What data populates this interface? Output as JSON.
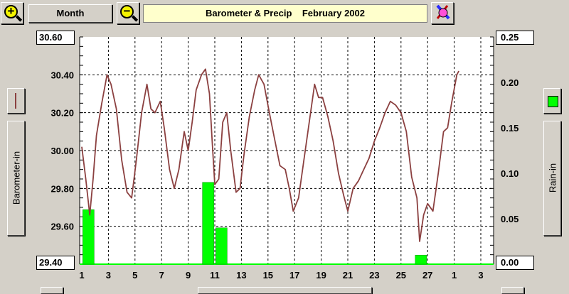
{
  "toolbar": {
    "zoom_in_glyph": "+",
    "period_label": "Month",
    "zoom_out_glyph": "−",
    "chart_title": "Barometer & Precip    February 2002"
  },
  "left_panel": {
    "axis_button_label": "Barometer-in",
    "series_color": "#8b4040"
  },
  "right_panel": {
    "axis_button_label": "Rain-in",
    "series_color": "#00ff00"
  },
  "left_axis": {
    "top_label": "30.60",
    "bottom_label": "29.40",
    "ticks": [
      "30.40",
      "30.20",
      "30.00",
      "29.80",
      "29.60"
    ]
  },
  "right_axis": {
    "top_label": "0.25",
    "bottom_label": "0.00",
    "ticks": [
      "0.20",
      "0.15",
      "0.10",
      "0.05"
    ]
  },
  "chart_data": {
    "type": "line",
    "x_tick_labels": [
      "1",
      "3",
      "5",
      "7",
      "9",
      "11",
      "13",
      "15",
      "17",
      "19",
      "21",
      "23",
      "25",
      "27",
      "1",
      "3"
    ],
    "ylim_left": [
      29.4,
      30.6
    ],
    "ylim_right": [
      0.0,
      0.25
    ],
    "series": [
      {
        "axis": "left",
        "color": "#8b4040",
        "points": [
          [
            1,
            30.02
          ],
          [
            1.3,
            29.85
          ],
          [
            1.6,
            29.66
          ],
          [
            1.85,
            29.85
          ],
          [
            2.1,
            30.08
          ],
          [
            2.5,
            30.25
          ],
          [
            2.9,
            30.4
          ],
          [
            3.2,
            30.35
          ],
          [
            3.6,
            30.22
          ],
          [
            4.0,
            29.95
          ],
          [
            4.4,
            29.78
          ],
          [
            4.75,
            29.75
          ],
          [
            5.1,
            29.95
          ],
          [
            5.5,
            30.2
          ],
          [
            5.9,
            30.35
          ],
          [
            6.2,
            30.22
          ],
          [
            6.5,
            30.2
          ],
          [
            6.9,
            30.26
          ],
          [
            7.2,
            30.12
          ],
          [
            7.6,
            29.9
          ],
          [
            7.95,
            29.8
          ],
          [
            8.3,
            29.9
          ],
          [
            8.7,
            30.1
          ],
          [
            9.0,
            30.0
          ],
          [
            9.3,
            30.15
          ],
          [
            9.6,
            30.32
          ],
          [
            10.0,
            30.4
          ],
          [
            10.3,
            30.43
          ],
          [
            10.6,
            30.3
          ],
          [
            10.8,
            30.05
          ],
          [
            11.0,
            29.82
          ],
          [
            11.3,
            29.85
          ],
          [
            11.6,
            30.15
          ],
          [
            11.9,
            30.2
          ],
          [
            12.2,
            30.0
          ],
          [
            12.6,
            29.78
          ],
          [
            12.9,
            29.8
          ],
          [
            13.2,
            29.98
          ],
          [
            13.6,
            30.18
          ],
          [
            14.0,
            30.32
          ],
          [
            14.3,
            30.4
          ],
          [
            14.7,
            30.35
          ],
          [
            15.1,
            30.2
          ],
          [
            15.5,
            30.06
          ],
          [
            15.9,
            29.92
          ],
          [
            16.3,
            29.9
          ],
          [
            16.6,
            29.8
          ],
          [
            16.9,
            29.68
          ],
          [
            17.3,
            29.75
          ],
          [
            17.7,
            29.95
          ],
          [
            18.1,
            30.15
          ],
          [
            18.5,
            30.35
          ],
          [
            18.8,
            30.28
          ],
          [
            19.1,
            30.28
          ],
          [
            19.5,
            30.18
          ],
          [
            19.9,
            30.05
          ],
          [
            20.3,
            29.88
          ],
          [
            20.7,
            29.76
          ],
          [
            21.0,
            29.68
          ],
          [
            21.4,
            29.8
          ],
          [
            21.8,
            29.84
          ],
          [
            22.2,
            29.9
          ],
          [
            22.6,
            29.96
          ],
          [
            23.0,
            30.05
          ],
          [
            23.4,
            30.12
          ],
          [
            23.8,
            30.2
          ],
          [
            24.2,
            30.26
          ],
          [
            24.6,
            30.24
          ],
          [
            25.0,
            30.2
          ],
          [
            25.4,
            30.1
          ],
          [
            25.8,
            29.86
          ],
          [
            26.2,
            29.75
          ],
          [
            26.4,
            29.52
          ],
          [
            26.7,
            29.66
          ],
          [
            27.0,
            29.72
          ],
          [
            27.4,
            29.68
          ],
          [
            27.8,
            29.88
          ],
          [
            28.2,
            30.1
          ],
          [
            28.5,
            30.12
          ],
          [
            28.8,
            30.25
          ],
          [
            29.2,
            30.4
          ],
          [
            29.35,
            30.42
          ]
        ]
      },
      {
        "axis": "right",
        "type": "bar",
        "color": "#00ff00",
        "x": [
          1.5,
          10.5,
          11.5,
          26.5
        ],
        "values": [
          0.06,
          0.09,
          0.04,
          0.01
        ]
      }
    ],
    "grid": true
  }
}
